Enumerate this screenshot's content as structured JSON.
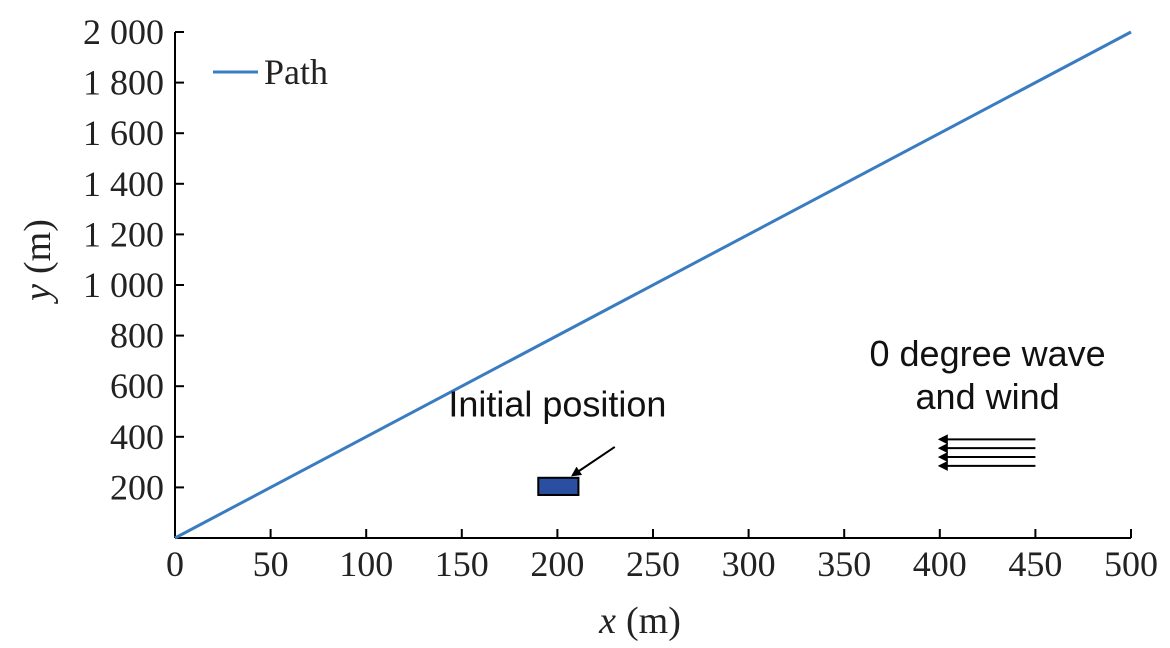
{
  "chart_data": {
    "type": "line",
    "xlabel_var": "x",
    "xlabel_unit": "(m)",
    "ylabel_var": "y",
    "ylabel_unit": "(m)",
    "xlim": [
      0,
      500
    ],
    "ylim": [
      0,
      2000
    ],
    "x_ticks": [
      0,
      50,
      100,
      150,
      200,
      250,
      300,
      350,
      400,
      450,
      500
    ],
    "x_tick_labels": [
      "0",
      "50",
      "100",
      "150",
      "200",
      "250",
      "300",
      "350",
      "400",
      "450",
      "500"
    ],
    "y_ticks": [
      200,
      400,
      600,
      800,
      1000,
      1200,
      1400,
      1600,
      1800,
      2000
    ],
    "y_tick_labels": [
      "200",
      "400",
      "600",
      "800",
      "1 000",
      "1 200",
      "1 400",
      "1 600",
      "1 800",
      "2 000"
    ],
    "grid": false,
    "legend_position": "top-left",
    "series": [
      {
        "name": "Path",
        "color": "#3a7cc1",
        "x": [
          0,
          500
        ],
        "y": [
          0,
          2000
        ]
      }
    ],
    "initial_position": {
      "label": "Initial position",
      "x_range": [
        190,
        211
      ],
      "y_range": [
        170,
        238
      ],
      "fill": "#2b4fa0",
      "label_x": 200,
      "label_y": 480,
      "arrow_from": [
        230,
        360
      ],
      "arrow_to": [
        208,
        248
      ]
    },
    "wind_wave": {
      "label_line1": "0 degree wave",
      "label_line2": "and wind",
      "label_x": 425,
      "label_y_line1": 680,
      "label_y_line2": 510,
      "arrow_x_start": 450,
      "arrow_x_end": 400,
      "arrow_y": [
        390,
        355,
        320,
        285
      ]
    }
  }
}
